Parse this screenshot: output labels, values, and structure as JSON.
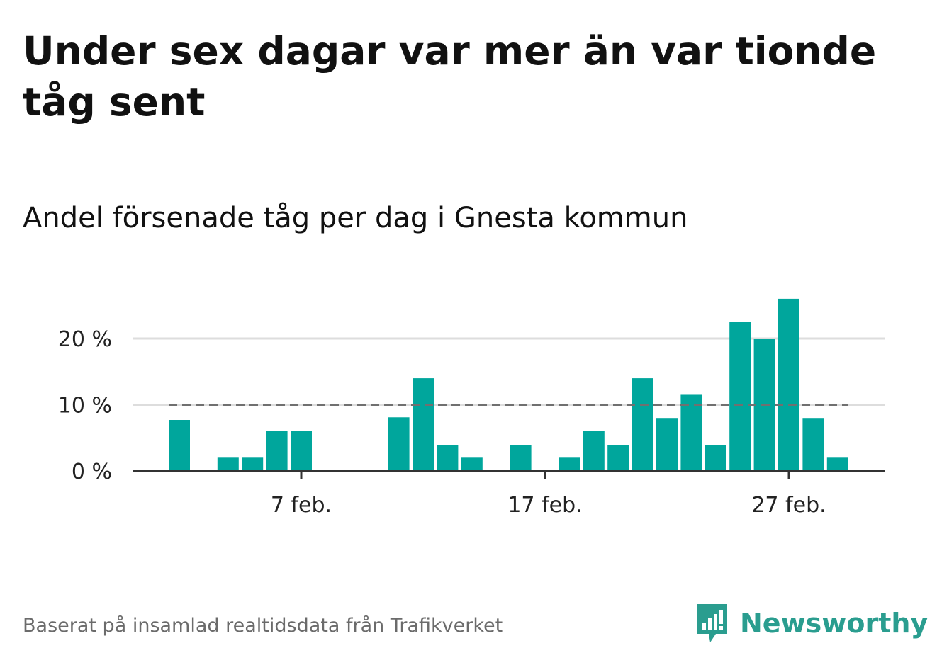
{
  "headline": "Under sex dagar var mer än var tionde tåg sent",
  "subtitle": "Andel försenade tåg per dag i Gnesta kommun",
  "footer": "Baserat på insamlad realtidsdata från Trafikverket",
  "brand": "Newsworthy",
  "colors": {
    "bar": "#00a69c",
    "reference": "#707070",
    "grid": "#dddddd",
    "axis": "#333333",
    "brand": "#2a9d8f"
  },
  "chart_data": {
    "type": "bar",
    "x": [
      "2 feb.",
      "3 feb.",
      "4 feb.",
      "5 feb.",
      "6 feb.",
      "7 feb.",
      "8 feb.",
      "9 feb.",
      "10 feb.",
      "11 feb.",
      "12 feb.",
      "13 feb.",
      "14 feb.",
      "15 feb.",
      "16 feb.",
      "17 feb.",
      "18 feb.",
      "19 feb.",
      "20 feb.",
      "21 feb.",
      "22 feb.",
      "23 feb.",
      "24 feb.",
      "25 feb.",
      "26 feb.",
      "27 feb.",
      "28 feb.",
      "29 feb."
    ],
    "values": [
      7.7,
      0,
      2,
      2,
      6,
      6,
      0,
      0,
      0,
      8.1,
      14,
      3.9,
      2,
      0,
      3.9,
      0,
      2,
      6,
      3.9,
      14,
      8,
      11.5,
      3.9,
      22.5,
      20,
      26,
      8,
      2
    ],
    "x_ticks": [
      "7 feb.",
      "17 feb.",
      "27 feb."
    ],
    "y_ticks": [
      0,
      10,
      20
    ],
    "y_tick_labels": [
      "0 %",
      "10 %",
      "20 %"
    ],
    "ylim": [
      0,
      27
    ],
    "reference_line": 10,
    "grid": true
  }
}
